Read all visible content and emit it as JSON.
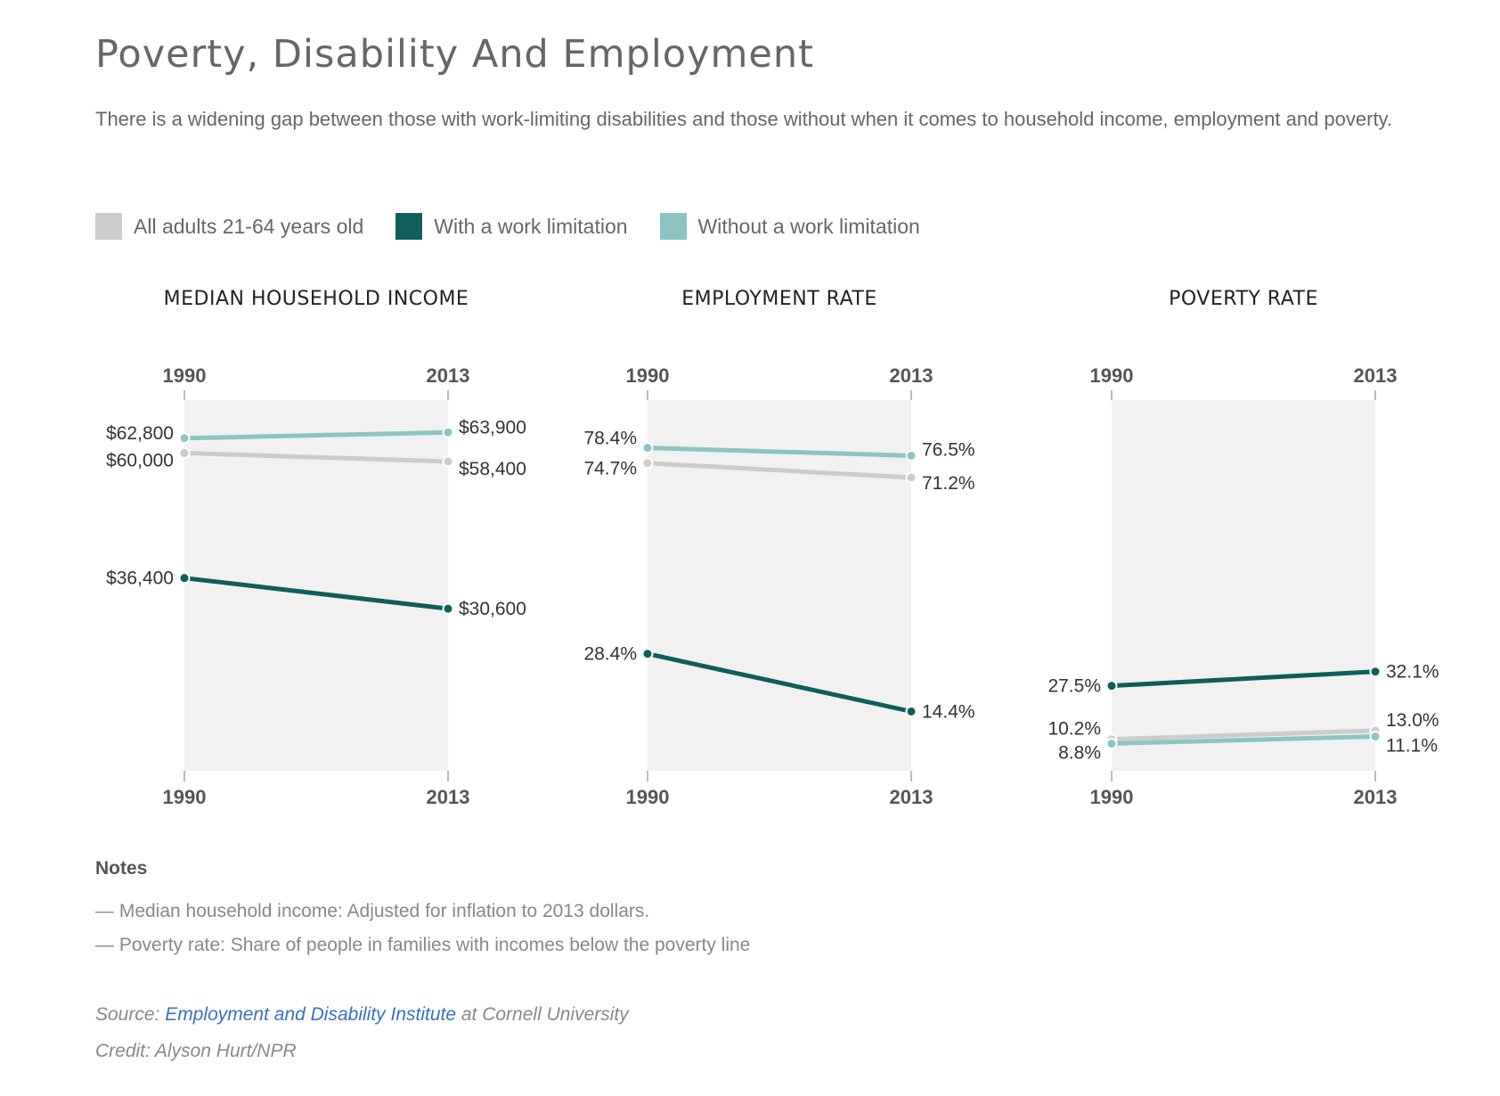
{
  "title": "Poverty, Disability And Employment",
  "subtitle": "There is a widening gap between those with work-limiting disabilities and those without when it comes to household income, employment and poverty.",
  "legend": [
    {
      "label": "All adults 21-64 years old",
      "color": "#cccccc"
    },
    {
      "label": "With a work limitation",
      "color": "#0f5e5b"
    },
    {
      "label": "Without a work limitation",
      "color": "#8cc4c4"
    }
  ],
  "chart_data": [
    {
      "type": "line",
      "title": "MEDIAN HOUSEHOLD INCOME",
      "x": [
        "1990",
        "2013"
      ],
      "ylim": [
        0,
        70000
      ],
      "series": [
        {
          "name": "All adults 21-64 years old",
          "values": [
            60000,
            58400
          ],
          "labels": [
            "$60,000",
            "$58,400"
          ]
        },
        {
          "name": "Without a work limitation",
          "values": [
            62800,
            63900
          ],
          "labels": [
            "$62,800",
            "$63,900"
          ]
        },
        {
          "name": "With a work limitation",
          "values": [
            36400,
            30600
          ],
          "labels": [
            "$36,400",
            "$30,600"
          ]
        }
      ]
    },
    {
      "type": "line",
      "title": "EMPLOYMENT RATE",
      "x": [
        "1990",
        "2013"
      ],
      "ylim": [
        0,
        90
      ],
      "series": [
        {
          "name": "All adults 21-64 years old",
          "values": [
            74.7,
            71.2
          ],
          "labels": [
            "74.7%",
            "71.2%"
          ]
        },
        {
          "name": "Without a work limitation",
          "values": [
            78.4,
            76.5
          ],
          "labels": [
            "78.4%",
            "76.5%"
          ]
        },
        {
          "name": "With a work limitation",
          "values": [
            28.4,
            14.4
          ],
          "labels": [
            "28.4%",
            "14.4%"
          ]
        }
      ]
    },
    {
      "type": "line",
      "title": "POVERTY RATE",
      "x": [
        "1990",
        "2013"
      ],
      "ylim": [
        0,
        120
      ],
      "series": [
        {
          "name": "All adults 21-64 years old",
          "values": [
            10.2,
            13.0
          ],
          "labels": [
            "10.2%",
            "13.0%"
          ]
        },
        {
          "name": "Without a work limitation",
          "values": [
            8.8,
            11.1
          ],
          "labels": [
            "8.8%",
            "11.1%"
          ]
        },
        {
          "name": "With a work limitation",
          "values": [
            27.5,
            32.1
          ],
          "labels": [
            "27.5%",
            "32.1%"
          ]
        }
      ]
    }
  ],
  "notes": {
    "heading": "Notes",
    "items": [
      "— Median household income: Adjusted for inflation to 2013 dollars.",
      "— Poverty rate: Share of people in families with incomes below the poverty line"
    ]
  },
  "source": {
    "prefix": "Source: ",
    "link_text": "Employment and Disability Institute",
    "suffix": " at Cornell University"
  },
  "credit": "Credit: Alyson Hurt/NPR"
}
